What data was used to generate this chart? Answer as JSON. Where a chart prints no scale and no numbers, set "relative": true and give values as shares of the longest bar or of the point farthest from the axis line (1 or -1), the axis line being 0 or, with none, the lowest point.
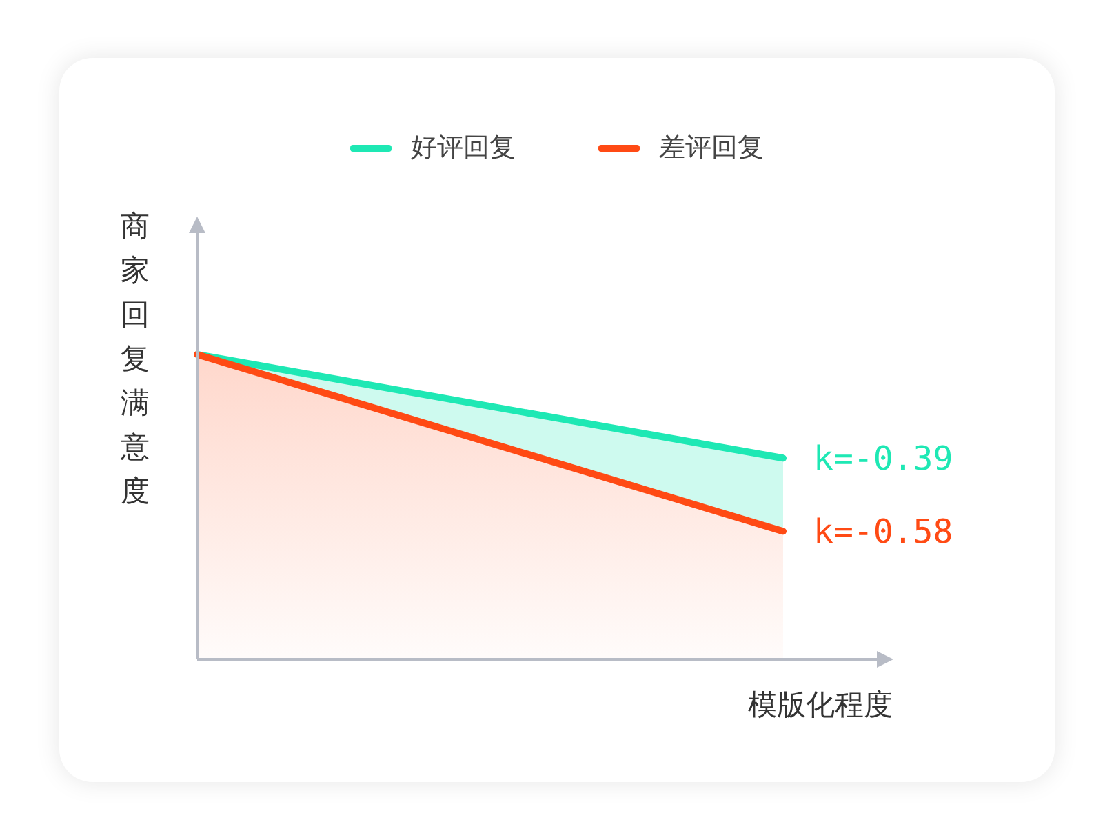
{
  "chart_data": {
    "type": "area",
    "relative": true,
    "xlabel": "模版化程度",
    "ylabel": "商家回复满意度",
    "legend": "top",
    "tick_labels": false,
    "categories": [
      null,
      null
    ],
    "series": [
      {
        "name": "好评回复",
        "color": "#1ee8b4",
        "values": [
          1,
          0.66
        ]
      },
      {
        "name": "差评回复",
        "color": "#ff4a14",
        "values": [
          1,
          0.42
        ]
      }
    ],
    "annotations": [
      "k=-0.39",
      "k=-0.58"
    ]
  }
}
